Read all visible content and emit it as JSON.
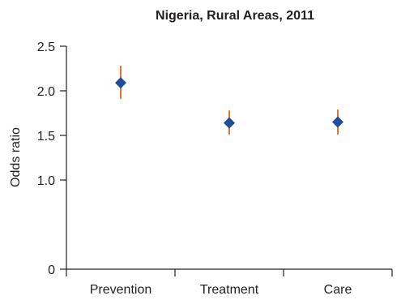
{
  "chart_data": {
    "type": "scatter",
    "title": "Nigeria, Rural Areas, 2011",
    "xlabel": "",
    "ylabel": "Odds ratio",
    "categories": [
      "Prevention",
      "Treatment",
      "Care"
    ],
    "values": [
      2.09,
      1.64,
      1.65
    ],
    "ci_lower": [
      1.91,
      1.51,
      1.51
    ],
    "ci_upper": [
      2.28,
      1.78,
      1.79
    ],
    "ylim": [
      0,
      2.5
    ],
    "yticks": [
      0,
      1.0,
      1.5,
      2.0,
      2.5
    ],
    "ytick_labels": [
      "0",
      "1.0",
      "1.5",
      "2.0",
      "2.5"
    ],
    "grid": false,
    "marker": "diamond",
    "colors": {
      "point": "#1f4e96",
      "error_bar": "#e8742a",
      "axis": "#231f20"
    }
  }
}
